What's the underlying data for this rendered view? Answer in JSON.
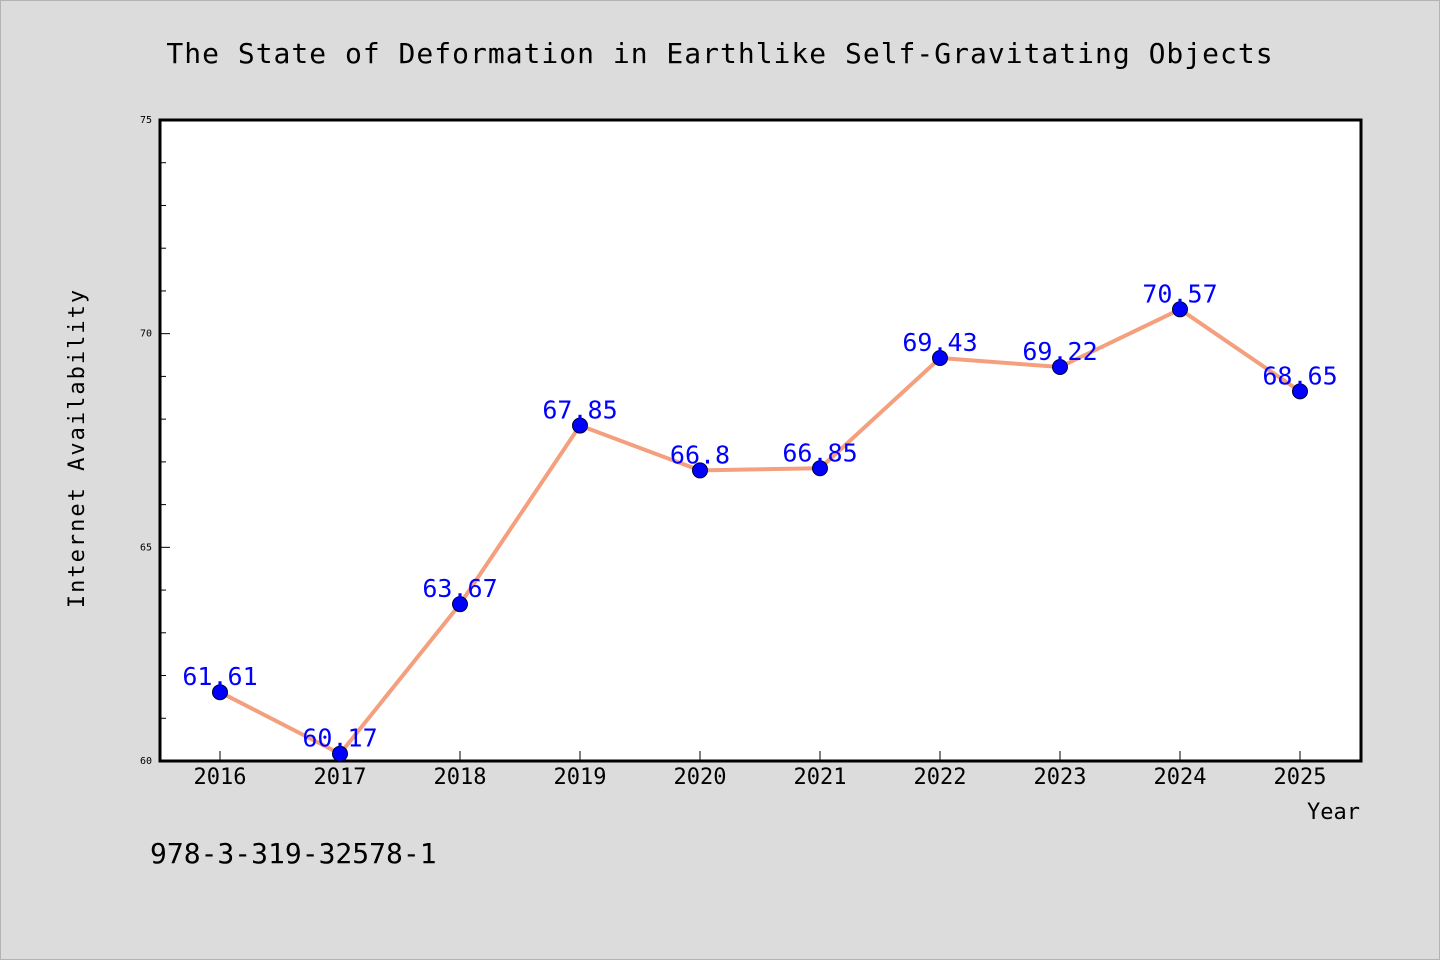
{
  "chart_data": {
    "type": "line",
    "title": "The State of Deformation in Earthlike Self-Gravitating Objects",
    "xlabel": "Year",
    "ylabel": "Internet Availability",
    "categories": [
      "2016",
      "2017",
      "2018",
      "2019",
      "2020",
      "2021",
      "2022",
      "2023",
      "2024",
      "2025"
    ],
    "series": [
      {
        "values": [
          61.61,
          60.17,
          63.67,
          67.85,
          66.8,
          66.85,
          69.43,
          69.22,
          70.57,
          68.65
        ],
        "labels": [
          "61.61",
          "60.17",
          "63.67",
          "67.85",
          "66.8",
          "66.85",
          "69.43",
          "69.22",
          "70.57",
          "68.65"
        ]
      }
    ],
    "ylim": [
      60,
      75
    ],
    "yticks": [
      60,
      65,
      70,
      75
    ],
    "grid": false,
    "legend": "none",
    "line_color": "#f4a07e",
    "marker_color": "#0000ff",
    "label_color": "#0000ff"
  },
  "footer": {
    "code": "978-3-319-32578-1"
  }
}
